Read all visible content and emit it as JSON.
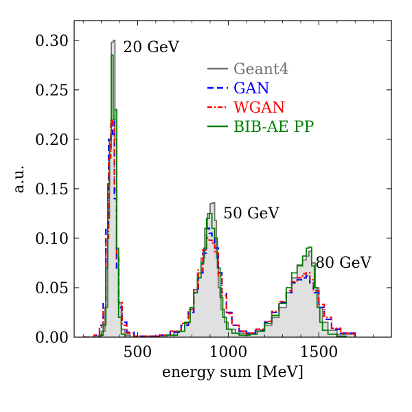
{
  "chart_data": {
    "type": "histogram",
    "xlabel": "energy sum [MeV]",
    "ylabel": "a.u.",
    "xlim": [
      150,
      1900
    ],
    "ylim": [
      0,
      0.32
    ],
    "xticks": [
      500,
      1000,
      1500
    ],
    "xtick_labels": [
      "500",
      "1000",
      "1500"
    ],
    "yticks": [
      0.0,
      0.05,
      0.1,
      0.15,
      0.2,
      0.25,
      0.3
    ],
    "ytick_labels": [
      "0.00",
      "0.05",
      "0.10",
      "0.15",
      "0.20",
      "0.25",
      "0.30"
    ],
    "annotations": [
      {
        "text": "20 GeV",
        "x": 420,
        "y": 0.288
      },
      {
        "text": "50 GeV",
        "x": 972,
        "y": 0.12
      },
      {
        "text": "80 GeV",
        "x": 1480,
        "y": 0.07
      }
    ],
    "legend": {
      "location": "upper-middle",
      "entries": [
        {
          "label": "Geant4",
          "color": "#707070",
          "style": "solid"
        },
        {
          "label": "GAN",
          "color": "#0000ff",
          "style": "dashed"
        },
        {
          "label": "WGAN",
          "color": "#ff0000",
          "style": "dashdot"
        },
        {
          "label": "BIB-AE PP",
          "color": "#008000",
          "style": "solid"
        }
      ]
    },
    "series": [
      {
        "name": "Geant4",
        "color": "#707070",
        "fill": "#e0e0e0",
        "style": "solid",
        "points": [
          [
            240,
            0
          ],
          [
            280,
            0.001
          ],
          [
            300,
            0.006
          ],
          [
            320,
            0.03
          ],
          [
            335,
            0.12
          ],
          [
            345,
            0.19
          ],
          [
            355,
            0.298
          ],
          [
            365,
            0.3
          ],
          [
            375,
            0.2
          ],
          [
            385,
            0.09
          ],
          [
            395,
            0.035
          ],
          [
            410,
            0.008
          ],
          [
            430,
            0.002
          ],
          [
            460,
            0
          ],
          [
            640,
            0.002
          ],
          [
            700,
            0.006
          ],
          [
            760,
            0.015
          ],
          [
            790,
            0.03
          ],
          [
            810,
            0.048
          ],
          [
            830,
            0.065
          ],
          [
            850,
            0.08
          ],
          [
            870,
            0.11
          ],
          [
            885,
            0.125
          ],
          [
            900,
            0.135
          ],
          [
            915,
            0.136
          ],
          [
            925,
            0.118
          ],
          [
            935,
            0.08
          ],
          [
            945,
            0.05
          ],
          [
            960,
            0.028
          ],
          [
            980,
            0.015
          ],
          [
            1000,
            0.008
          ],
          [
            1040,
            0.004
          ],
          [
            1100,
            0.003
          ],
          [
            1150,
            0.006
          ],
          [
            1200,
            0.012
          ],
          [
            1240,
            0.02
          ],
          [
            1280,
            0.03
          ],
          [
            1320,
            0.045
          ],
          [
            1350,
            0.06
          ],
          [
            1380,
            0.073
          ],
          [
            1410,
            0.078
          ],
          [
            1430,
            0.082
          ],
          [
            1445,
            0.087
          ],
          [
            1460,
            0.075
          ],
          [
            1480,
            0.05
          ],
          [
            1500,
            0.03
          ],
          [
            1520,
            0.015
          ],
          [
            1550,
            0.007
          ],
          [
            1600,
            0.003
          ],
          [
            1700,
            0
          ]
        ]
      },
      {
        "name": "GAN",
        "color": "#0000ff",
        "style": "dashed",
        "points": [
          [
            200,
            0
          ],
          [
            260,
            0.002
          ],
          [
            290,
            0.012
          ],
          [
            310,
            0.035
          ],
          [
            325,
            0.11
          ],
          [
            340,
            0.2
          ],
          [
            352,
            0.205
          ],
          [
            362,
            0.22
          ],
          [
            372,
            0.14
          ],
          [
            384,
            0.07
          ],
          [
            396,
            0.03
          ],
          [
            415,
            0.015
          ],
          [
            440,
            0.005
          ],
          [
            480,
            0.001
          ],
          [
            620,
            0.002
          ],
          [
            680,
            0.005
          ],
          [
            740,
            0.012
          ],
          [
            780,
            0.025
          ],
          [
            810,
            0.045
          ],
          [
            835,
            0.065
          ],
          [
            860,
            0.085
          ],
          [
            880,
            0.11
          ],
          [
            895,
            0.105
          ],
          [
            910,
            0.1
          ],
          [
            925,
            0.09
          ],
          [
            945,
            0.065
          ],
          [
            965,
            0.045
          ],
          [
            990,
            0.025
          ],
          [
            1020,
            0.012
          ],
          [
            1060,
            0.006
          ],
          [
            1100,
            0.004
          ],
          [
            1150,
            0.007
          ],
          [
            1200,
            0.015
          ],
          [
            1240,
            0.025
          ],
          [
            1280,
            0.035
          ],
          [
            1320,
            0.045
          ],
          [
            1350,
            0.055
          ],
          [
            1380,
            0.058
          ],
          [
            1410,
            0.06
          ],
          [
            1430,
            0.062
          ],
          [
            1450,
            0.055
          ],
          [
            1470,
            0.045
          ],
          [
            1500,
            0.03
          ],
          [
            1530,
            0.018
          ],
          [
            1570,
            0.008
          ],
          [
            1620,
            0.004
          ],
          [
            1700,
            0.001
          ]
        ]
      },
      {
        "name": "WGAN",
        "color": "#ff0000",
        "style": "dashdot",
        "points": [
          [
            200,
            0
          ],
          [
            260,
            0.002
          ],
          [
            290,
            0.01
          ],
          [
            310,
            0.03
          ],
          [
            325,
            0.1
          ],
          [
            340,
            0.18
          ],
          [
            352,
            0.22
          ],
          [
            362,
            0.215
          ],
          [
            372,
            0.15
          ],
          [
            384,
            0.08
          ],
          [
            396,
            0.035
          ],
          [
            415,
            0.012
          ],
          [
            440,
            0.004
          ],
          [
            480,
            0.001
          ],
          [
            620,
            0.002
          ],
          [
            680,
            0.006
          ],
          [
            740,
            0.014
          ],
          [
            780,
            0.028
          ],
          [
            810,
            0.048
          ],
          [
            835,
            0.068
          ],
          [
            860,
            0.088
          ],
          [
            880,
            0.1
          ],
          [
            895,
            0.098
          ],
          [
            910,
            0.095
          ],
          [
            925,
            0.085
          ],
          [
            945,
            0.062
          ],
          [
            965,
            0.042
          ],
          [
            990,
            0.024
          ],
          [
            1020,
            0.012
          ],
          [
            1060,
            0.006
          ],
          [
            1100,
            0.004
          ],
          [
            1150,
            0.008
          ],
          [
            1200,
            0.016
          ],
          [
            1240,
            0.026
          ],
          [
            1280,
            0.036
          ],
          [
            1320,
            0.047
          ],
          [
            1350,
            0.056
          ],
          [
            1380,
            0.06
          ],
          [
            1410,
            0.064
          ],
          [
            1430,
            0.065
          ],
          [
            1450,
            0.058
          ],
          [
            1470,
            0.047
          ],
          [
            1500,
            0.033
          ],
          [
            1530,
            0.02
          ],
          [
            1570,
            0.009
          ],
          [
            1620,
            0.004
          ],
          [
            1700,
            0.001
          ]
        ]
      },
      {
        "name": "BIB-AE PP",
        "color": "#008000",
        "style": "solid",
        "points": [
          [
            250,
            0
          ],
          [
            290,
            0.002
          ],
          [
            310,
            0.012
          ],
          [
            325,
            0.07
          ],
          [
            335,
            0.155
          ],
          [
            345,
            0.2
          ],
          [
            355,
            0.285
          ],
          [
            365,
            0.22
          ],
          [
            375,
            0.23
          ],
          [
            385,
            0.09
          ],
          [
            395,
            0.02
          ],
          [
            410,
            0.003
          ],
          [
            430,
            0
          ],
          [
            660,
            0.002
          ],
          [
            720,
            0.006
          ],
          [
            760,
            0.015
          ],
          [
            790,
            0.03
          ],
          [
            810,
            0.045
          ],
          [
            830,
            0.06
          ],
          [
            850,
            0.075
          ],
          [
            865,
            0.09
          ],
          [
            880,
            0.12
          ],
          [
            895,
            0.125
          ],
          [
            910,
            0.11
          ],
          [
            925,
            0.1
          ],
          [
            940,
            0.07
          ],
          [
            955,
            0.04
          ],
          [
            970,
            0.02
          ],
          [
            990,
            0.008
          ],
          [
            1020,
            0.004
          ],
          [
            1060,
            0.002
          ],
          [
            1120,
            0.003
          ],
          [
            1160,
            0.006
          ],
          [
            1200,
            0.014
          ],
          [
            1240,
            0.022
          ],
          [
            1280,
            0.034
          ],
          [
            1320,
            0.05
          ],
          [
            1350,
            0.065
          ],
          [
            1380,
            0.072
          ],
          [
            1410,
            0.082
          ],
          [
            1430,
            0.09
          ],
          [
            1445,
            0.091
          ],
          [
            1460,
            0.072
          ],
          [
            1475,
            0.05
          ],
          [
            1490,
            0.03
          ],
          [
            1505,
            0.015
          ],
          [
            1520,
            0.007
          ],
          [
            1550,
            0.003
          ],
          [
            1600,
            0.001
          ],
          [
            1650,
            0
          ]
        ]
      }
    ]
  }
}
